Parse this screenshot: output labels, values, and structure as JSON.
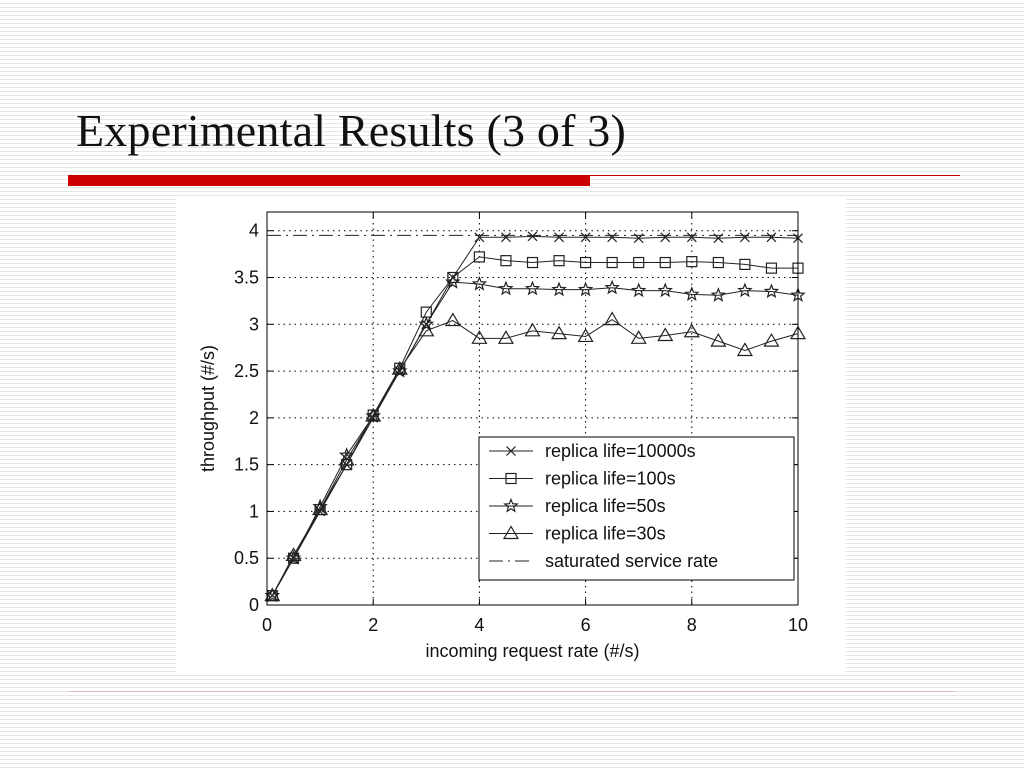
{
  "slide": {
    "title": "Experimental Results (3 of 3)"
  },
  "colors": {
    "accent": "#cc0000",
    "line": "#222222"
  },
  "chart_data": {
    "type": "line",
    "xlabel": "incoming request rate (#/s)",
    "ylabel": "throughput (#/s)",
    "xlim": [
      0,
      10
    ],
    "ylim": [
      0,
      4.2
    ],
    "xticks": [
      "0",
      "2",
      "4",
      "6",
      "8",
      "10"
    ],
    "yticks": [
      "0",
      "0.5",
      "1",
      "1.5",
      "2",
      "2.5",
      "3",
      "3.5",
      "4"
    ],
    "grid": true,
    "legend_position": "bottom-right",
    "x": [
      0.1,
      0.5,
      1,
      1.5,
      2,
      2.5,
      3,
      3.5,
      4,
      4.5,
      5,
      5.5,
      6,
      6.5,
      7,
      7.5,
      8,
      8.5,
      9,
      9.5,
      10
    ],
    "series": [
      {
        "name": "replica life=10000s",
        "marker": "x",
        "values": [
          0.1,
          0.5,
          1.0,
          1.5,
          2.0,
          2.5,
          3.0,
          3.5,
          3.93,
          3.93,
          3.94,
          3.93,
          3.93,
          3.93,
          3.92,
          3.93,
          3.93,
          3.92,
          3.93,
          3.93,
          3.92
        ]
      },
      {
        "name": "replica life=100s",
        "marker": "square",
        "values": [
          0.1,
          0.5,
          1.02,
          1.5,
          2.03,
          2.53,
          3.13,
          3.5,
          3.72,
          3.68,
          3.66,
          3.68,
          3.66,
          3.66,
          3.66,
          3.66,
          3.67,
          3.66,
          3.64,
          3.6,
          3.6
        ]
      },
      {
        "name": "replica life=50s",
        "marker": "star",
        "values": [
          0.1,
          0.5,
          1.05,
          1.6,
          2.02,
          2.5,
          3.0,
          3.45,
          3.43,
          3.38,
          3.38,
          3.37,
          3.37,
          3.39,
          3.36,
          3.36,
          3.32,
          3.31,
          3.36,
          3.35,
          3.31
        ]
      },
      {
        "name": "replica life=30s",
        "marker": "triangle",
        "values": [
          0.1,
          0.53,
          1.02,
          1.55,
          2.02,
          2.52,
          2.93,
          3.04,
          2.85,
          2.85,
          2.93,
          2.9,
          2.87,
          3.05,
          2.85,
          2.88,
          2.92,
          2.82,
          2.72,
          2.82,
          2.9
        ]
      },
      {
        "name": "saturated service rate",
        "marker": "none",
        "style": "dash-dot",
        "constant": 3.95
      }
    ]
  }
}
